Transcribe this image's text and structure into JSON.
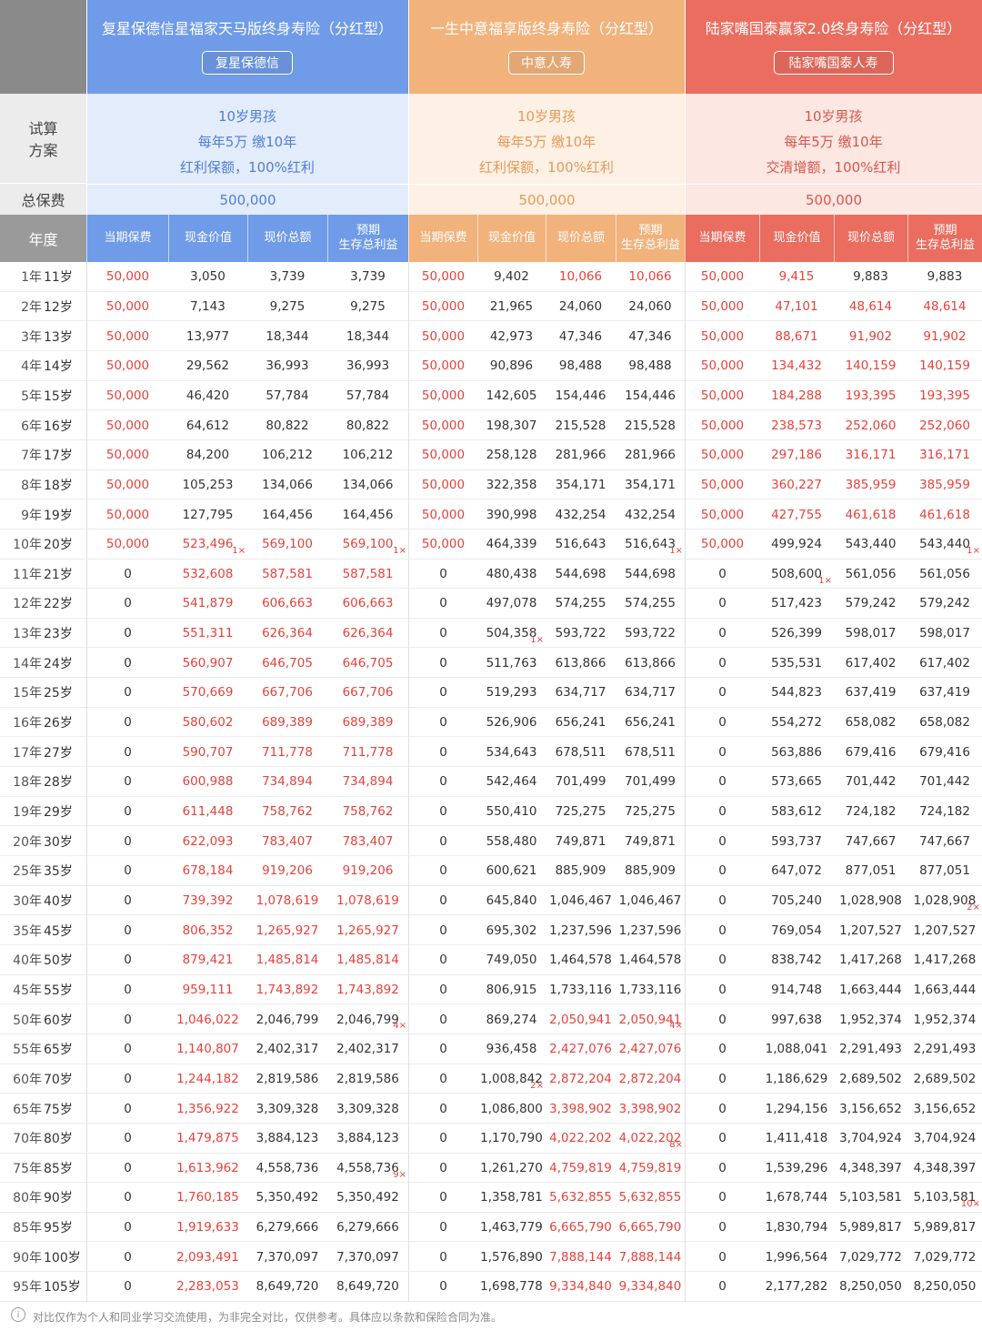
{
  "labels": {
    "plan": "试算\n方案",
    "total_premium": "总保费",
    "year": "年度"
  },
  "products": [
    {
      "name": "复星保德信星福家天马版终身寿险（分红型）",
      "company": "复星保德信",
      "plan": [
        "10岁男孩",
        "每年5万 缴10年",
        "红利保额，100%红利"
      ],
      "total_premium": "500,000",
      "columns": [
        "当期保费",
        "现金价值",
        "现价总额",
        "预期\n生存总利益"
      ],
      "color": "#6f9be8",
      "light": "#e3ecfb",
      "accent": "#4f7fd6"
    },
    {
      "name": "一生中意福享版终身寿险（分红型）",
      "company": "中意人寿",
      "plan": [
        "10岁男孩",
        "每年5万 缴10年",
        "红利保额，100%红利"
      ],
      "total_premium": "500,000",
      "columns": [
        "当期保费",
        "现金价值",
        "现价总额",
        "预期\n生存总利益"
      ],
      "color": "#f2b27c",
      "light": "#fdf0e4",
      "accent": "#e59a5a"
    },
    {
      "name": "陆家嘴国泰赢家2.0终身寿险（分红型）",
      "company": "陆家嘴国泰人寿",
      "plan": [
        "10岁男孩",
        "每年5万 缴10年",
        "交清增额，100%红利"
      ],
      "total_premium": "500,000",
      "columns": [
        "当期保费",
        "现金价值",
        "现价总额",
        "预期\n生存总利益"
      ],
      "color": "#ea6d5f",
      "light": "#fce7e3",
      "accent": "#d9574a"
    }
  ],
  "rows": [
    {
      "year": "1年",
      "age": "11岁",
      "cells": [
        "50,000",
        "3,050",
        "3,739",
        "3,739",
        "50,000",
        "9,402",
        "10,066",
        "10,066",
        "50,000",
        "9,415",
        "9,883",
        "9,883"
      ],
      "red": [
        0,
        4,
        6,
        7,
        8,
        9
      ]
    },
    {
      "year": "2年",
      "age": "12岁",
      "cells": [
        "50,000",
        "7,143",
        "9,275",
        "9,275",
        "50,000",
        "21,965",
        "24,060",
        "24,060",
        "50,000",
        "47,101",
        "48,614",
        "48,614"
      ],
      "red": [
        0,
        4,
        8,
        9,
        10,
        11
      ]
    },
    {
      "year": "3年",
      "age": "13岁",
      "cells": [
        "50,000",
        "13,977",
        "18,344",
        "18,344",
        "50,000",
        "42,973",
        "47,346",
        "47,346",
        "50,000",
        "88,671",
        "91,902",
        "91,902"
      ],
      "red": [
        0,
        4,
        8,
        9,
        10,
        11
      ]
    },
    {
      "year": "4年",
      "age": "14岁",
      "cells": [
        "50,000",
        "29,562",
        "36,993",
        "36,993",
        "50,000",
        "90,896",
        "98,488",
        "98,488",
        "50,000",
        "134,432",
        "140,159",
        "140,159"
      ],
      "red": [
        0,
        4,
        8,
        9,
        10,
        11
      ]
    },
    {
      "year": "5年",
      "age": "15岁",
      "cells": [
        "50,000",
        "46,420",
        "57,784",
        "57,784",
        "50,000",
        "142,605",
        "154,446",
        "154,446",
        "50,000",
        "184,288",
        "193,395",
        "193,395"
      ],
      "red": [
        0,
        4,
        8,
        9,
        10,
        11
      ]
    },
    {
      "year": "6年",
      "age": "16岁",
      "cells": [
        "50,000",
        "64,612",
        "80,822",
        "80,822",
        "50,000",
        "198,307",
        "215,528",
        "215,528",
        "50,000",
        "238,573",
        "252,060",
        "252,060"
      ],
      "red": [
        0,
        4,
        8,
        9,
        10,
        11
      ]
    },
    {
      "year": "7年",
      "age": "17岁",
      "cells": [
        "50,000",
        "84,200",
        "106,212",
        "106,212",
        "50,000",
        "258,128",
        "281,966",
        "281,966",
        "50,000",
        "297,186",
        "316,171",
        "316,171"
      ],
      "red": [
        0,
        4,
        8,
        9,
        10,
        11
      ]
    },
    {
      "year": "8年",
      "age": "18岁",
      "cells": [
        "50,000",
        "105,253",
        "134,066",
        "134,066",
        "50,000",
        "322,358",
        "354,171",
        "354,171",
        "50,000",
        "360,227",
        "385,959",
        "385,959"
      ],
      "red": [
        0,
        4,
        8,
        9,
        10,
        11
      ]
    },
    {
      "year": "9年",
      "age": "19岁",
      "cells": [
        "50,000",
        "127,795",
        "164,456",
        "164,456",
        "50,000",
        "390,998",
        "432,254",
        "432,254",
        "50,000",
        "427,755",
        "461,618",
        "461,618"
      ],
      "red": [
        0,
        4,
        8,
        9,
        10,
        11
      ]
    },
    {
      "year": "10年",
      "age": "20岁",
      "cells": [
        "50,000",
        "523,496",
        "569,100",
        "569,100",
        "50,000",
        "464,339",
        "516,643",
        "516,643",
        "50,000",
        "499,924",
        "543,440",
        "543,440"
      ],
      "red": [
        0,
        1,
        2,
        3,
        4,
        8
      ],
      "notes": [
        {
          "col": 1,
          "text": "1×"
        },
        {
          "col": 3,
          "text": "1×"
        },
        {
          "col": 7,
          "text": "1×"
        },
        {
          "col": 11,
          "text": "1×"
        }
      ]
    },
    {
      "year": "11年",
      "age": "21岁",
      "cells": [
        "0",
        "532,608",
        "587,581",
        "587,581",
        "0",
        "480,438",
        "544,698",
        "544,698",
        "0",
        "508,600",
        "561,056",
        "561,056"
      ],
      "red": [
        1,
        2,
        3
      ],
      "notes": [
        {
          "col": 9,
          "text": "1×"
        }
      ]
    },
    {
      "year": "12年",
      "age": "22岁",
      "cells": [
        "0",
        "541,879",
        "606,663",
        "606,663",
        "0",
        "497,078",
        "574,255",
        "574,255",
        "0",
        "517,423",
        "579,242",
        "579,242"
      ],
      "red": [
        1,
        2,
        3
      ]
    },
    {
      "year": "13年",
      "age": "23岁",
      "cells": [
        "0",
        "551,311",
        "626,364",
        "626,364",
        "0",
        "504,358",
        "593,722",
        "593,722",
        "0",
        "526,399",
        "598,017",
        "598,017"
      ],
      "red": [
        1,
        2,
        3
      ],
      "notes": [
        {
          "col": 5,
          "text": "1×"
        }
      ]
    },
    {
      "year": "14年",
      "age": "24岁",
      "cells": [
        "0",
        "560,907",
        "646,705",
        "646,705",
        "0",
        "511,763",
        "613,866",
        "613,866",
        "0",
        "535,531",
        "617,402",
        "617,402"
      ],
      "red": [
        1,
        2,
        3
      ]
    },
    {
      "year": "15年",
      "age": "25岁",
      "cells": [
        "0",
        "570,669",
        "667,706",
        "667,706",
        "0",
        "519,293",
        "634,717",
        "634,717",
        "0",
        "544,823",
        "637,419",
        "637,419"
      ],
      "red": [
        1,
        2,
        3
      ]
    },
    {
      "year": "16年",
      "age": "26岁",
      "cells": [
        "0",
        "580,602",
        "689,389",
        "689,389",
        "0",
        "526,906",
        "656,241",
        "656,241",
        "0",
        "554,272",
        "658,082",
        "658,082"
      ],
      "red": [
        1,
        2,
        3
      ]
    },
    {
      "year": "17年",
      "age": "27岁",
      "cells": [
        "0",
        "590,707",
        "711,778",
        "711,778",
        "0",
        "534,643",
        "678,511",
        "678,511",
        "0",
        "563,886",
        "679,416",
        "679,416"
      ],
      "red": [
        1,
        2,
        3
      ]
    },
    {
      "year": "18年",
      "age": "28岁",
      "cells": [
        "0",
        "600,988",
        "734,894",
        "734,894",
        "0",
        "542,464",
        "701,499",
        "701,499",
        "0",
        "573,665",
        "701,442",
        "701,442"
      ],
      "red": [
        1,
        2,
        3
      ]
    },
    {
      "year": "19年",
      "age": "29岁",
      "cells": [
        "0",
        "611,448",
        "758,762",
        "758,762",
        "0",
        "550,410",
        "725,275",
        "725,275",
        "0",
        "583,612",
        "724,182",
        "724,182"
      ],
      "red": [
        1,
        2,
        3
      ]
    },
    {
      "year": "20年",
      "age": "30岁",
      "cells": [
        "0",
        "622,093",
        "783,407",
        "783,407",
        "0",
        "558,480",
        "749,871",
        "749,871",
        "0",
        "593,737",
        "747,667",
        "747,667"
      ],
      "red": [
        1,
        2,
        3
      ]
    },
    {
      "year": "25年",
      "age": "35岁",
      "cells": [
        "0",
        "678,184",
        "919,206",
        "919,206",
        "0",
        "600,621",
        "885,909",
        "885,909",
        "0",
        "647,072",
        "877,051",
        "877,051"
      ],
      "red": [
        1,
        2,
        3
      ]
    },
    {
      "year": "30年",
      "age": "40岁",
      "cells": [
        "0",
        "739,392",
        "1,078,619",
        "1,078,619",
        "0",
        "645,840",
        "1,046,467",
        "1,046,467",
        "0",
        "705,240",
        "1,028,908",
        "1,028,908"
      ],
      "red": [
        1,
        2,
        3
      ],
      "notes": [
        {
          "col": 11,
          "text": "2×"
        }
      ]
    },
    {
      "year": "35年",
      "age": "45岁",
      "cells": [
        "0",
        "806,352",
        "1,265,927",
        "1,265,927",
        "0",
        "695,302",
        "1,237,596",
        "1,237,596",
        "0",
        "769,054",
        "1,207,527",
        "1,207,527"
      ],
      "red": [
        1,
        2,
        3
      ]
    },
    {
      "year": "40年",
      "age": "50岁",
      "cells": [
        "0",
        "879,421",
        "1,485,814",
        "1,485,814",
        "0",
        "749,050",
        "1,464,578",
        "1,464,578",
        "0",
        "838,742",
        "1,417,268",
        "1,417,268"
      ],
      "red": [
        1,
        2,
        3
      ]
    },
    {
      "year": "45年",
      "age": "55岁",
      "cells": [
        "0",
        "959,111",
        "1,743,892",
        "1,743,892",
        "0",
        "806,915",
        "1,733,116",
        "1,733,116",
        "0",
        "914,748",
        "1,663,444",
        "1,663,444"
      ],
      "red": [
        1,
        2,
        3
      ]
    },
    {
      "year": "50年",
      "age": "60岁",
      "cells": [
        "0",
        "1,046,022",
        "2,046,799",
        "2,046,799",
        "0",
        "869,274",
        "2,050,941",
        "2,050,941",
        "0",
        "997,638",
        "1,952,374",
        "1,952,374"
      ],
      "red": [
        1,
        6,
        7
      ],
      "notes": [
        {
          "col": 3,
          "text": "4×"
        },
        {
          "col": 7,
          "text": "4×"
        }
      ]
    },
    {
      "year": "55年",
      "age": "65岁",
      "cells": [
        "0",
        "1,140,807",
        "2,402,317",
        "2,402,317",
        "0",
        "936,458",
        "2,427,076",
        "2,427,076",
        "0",
        "1,088,041",
        "2,291,493",
        "2,291,493"
      ],
      "red": [
        1,
        6,
        7
      ]
    },
    {
      "year": "60年",
      "age": "70岁",
      "cells": [
        "0",
        "1,244,182",
        "2,819,586",
        "2,819,586",
        "0",
        "1,008,842",
        "2,872,204",
        "2,872,204",
        "0",
        "1,186,629",
        "2,689,502",
        "2,689,502"
      ],
      "red": [
        1,
        6,
        7
      ],
      "notes": [
        {
          "col": 5,
          "text": "2×"
        }
      ]
    },
    {
      "year": "65年",
      "age": "75岁",
      "cells": [
        "0",
        "1,356,922",
        "3,309,328",
        "3,309,328",
        "0",
        "1,086,800",
        "3,398,902",
        "3,398,902",
        "0",
        "1,294,156",
        "3,156,652",
        "3,156,652"
      ],
      "red": [
        1,
        6,
        7
      ]
    },
    {
      "year": "70年",
      "age": "80岁",
      "cells": [
        "0",
        "1,479,875",
        "3,884,123",
        "3,884,123",
        "0",
        "1,170,790",
        "4,022,202",
        "4,022,202",
        "0",
        "1,411,418",
        "3,704,924",
        "3,704,924"
      ],
      "red": [
        1,
        6,
        7
      ],
      "notes": [
        {
          "col": 7,
          "text": "8×"
        }
      ]
    },
    {
      "year": "75年",
      "age": "85岁",
      "cells": [
        "0",
        "1,613,962",
        "4,558,736",
        "4,558,736",
        "0",
        "1,261,270",
        "4,759,819",
        "4,759,819",
        "0",
        "1,539,296",
        "4,348,397",
        "4,348,397"
      ],
      "red": [
        1,
        6,
        7
      ],
      "notes": [
        {
          "col": 3,
          "text": "9×"
        }
      ]
    },
    {
      "year": "80年",
      "age": "90岁",
      "cells": [
        "0",
        "1,760,185",
        "5,350,492",
        "5,350,492",
        "0",
        "1,358,781",
        "5,632,855",
        "5,632,855",
        "0",
        "1,678,744",
        "5,103,581",
        "5,103,581"
      ],
      "red": [
        1,
        6,
        7
      ],
      "notes": [
        {
          "col": 11,
          "text": "10×"
        }
      ]
    },
    {
      "year": "85年",
      "age": "95岁",
      "cells": [
        "0",
        "1,919,633",
        "6,279,666",
        "6,279,666",
        "0",
        "1,463,779",
        "6,665,790",
        "6,665,790",
        "0",
        "1,830,794",
        "5,989,817",
        "5,989,817"
      ],
      "red": [
        1,
        6,
        7
      ]
    },
    {
      "year": "90年",
      "age": "100岁",
      "cells": [
        "0",
        "2,093,491",
        "7,370,097",
        "7,370,097",
        "0",
        "1,576,890",
        "7,888,144",
        "7,888,144",
        "0",
        "1,996,564",
        "7,029,772",
        "7,029,772"
      ],
      "red": [
        1,
        6,
        7
      ]
    },
    {
      "year": "95年",
      "age": "105岁",
      "cells": [
        "0",
        "2,283,053",
        "8,649,720",
        "8,649,720",
        "0",
        "1,698,778",
        "9,334,840",
        "9,334,840",
        "0",
        "2,177,282",
        "8,250,050",
        "8,250,050"
      ],
      "red": [
        1,
        6,
        7
      ]
    }
  ],
  "footer": "对比仅作为个人和同业学习交流使用，为非完全对比，仅供参考。具体应以条款和保险合同为准。"
}
